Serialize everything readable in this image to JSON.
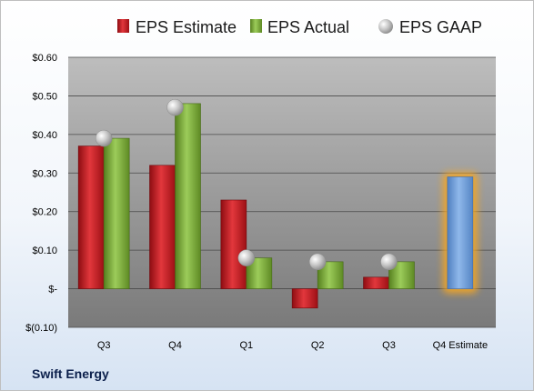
{
  "chart_data": {
    "type": "bar",
    "title": "",
    "xlabel": "",
    "ylabel": "",
    "company": "Swift Energy",
    "categories": [
      "Q3",
      "Q4",
      "Q1",
      "Q2",
      "Q3",
      "Q4 Estimate"
    ],
    "ylim": [
      -0.1,
      0.6
    ],
    "yticks": [
      0.6,
      0.5,
      0.4,
      0.3,
      0.2,
      0.1,
      0.0,
      -0.1
    ],
    "ytick_labels": [
      "$0.60",
      "$0.50",
      "$0.40",
      "$0.30",
      "$0.20",
      "$0.10",
      "$-",
      "$(0.10)"
    ],
    "grid": true,
    "legend_position": "top",
    "series": [
      {
        "name": "EPS Estimate",
        "kind": "bar",
        "color": "#c0161c",
        "values": [
          0.37,
          0.32,
          0.23,
          -0.05,
          0.03,
          null
        ]
      },
      {
        "name": "EPS Actual",
        "kind": "bar",
        "color": "#77a53a",
        "values": [
          0.39,
          0.48,
          0.08,
          0.07,
          0.07,
          null
        ]
      },
      {
        "name": "EPS GAAP",
        "kind": "marker",
        "color": "#a9a9a9",
        "values": [
          0.39,
          0.47,
          0.08,
          0.07,
          0.07,
          null
        ]
      }
    ],
    "estimate": {
      "category_index": 5,
      "value": 0.29,
      "color": "#6b9bd6",
      "glow": "#f5a623"
    }
  }
}
